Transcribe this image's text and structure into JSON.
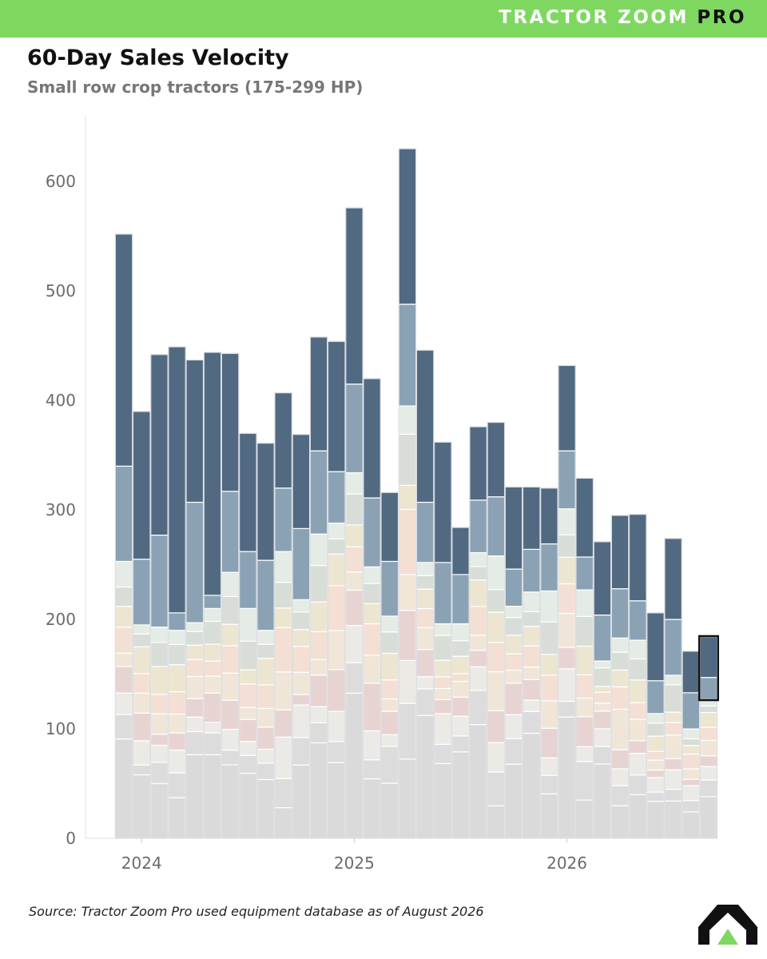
{
  "header": {
    "brand_main": "TRACTOR ZOOM",
    "brand_pro": "PRO"
  },
  "chart_title": "60-Day Sales Velocity",
  "chart_subtitle": "Small row crop tractors (175-299 HP)",
  "source": "Source: Tractor Zoom Pro used equipment database as of August 2026",
  "logo": {
    "icon": "tractor-zoom-arrow-logo",
    "colors": {
      "dark": "#111111",
      "accent": "#7ed85f"
    }
  },
  "chart_data": {
    "type": "bar",
    "stacked": true,
    "ylim": [
      0,
      660
    ],
    "yticks": [
      0,
      100,
      200,
      300,
      400,
      500,
      600
    ],
    "xticks": [
      "2024",
      "2025",
      "2026"
    ],
    "xtick_positions": [
      1,
      13,
      25
    ],
    "grid": false,
    "highlighted_bar": 33,
    "colors": {
      "top": "#516a82",
      "second": "#8ba2b5",
      "middle": [
        "#e5ebe5",
        "#d9ddd8",
        "#ece6d1",
        "#f4dfd4",
        "#f0e6d8",
        "#e8d3d3",
        "#eceae6",
        "#dcdcdc"
      ],
      "base": "#dadada"
    },
    "series_order": [
      "base",
      "band_1",
      "band_2",
      "band_3",
      "band_4",
      "band_5",
      "band_6",
      "band_7",
      "band_8",
      "second",
      "top"
    ],
    "bars": [
      {
        "total": 552,
        "second": 340,
        "top_of_band": 253
      },
      {
        "total": 390,
        "second": 255,
        "top_of_band": 195
      },
      {
        "total": 442,
        "second": 277,
        "top_of_band": 193
      },
      {
        "total": 449,
        "second": 206,
        "top_of_band": 190
      },
      {
        "total": 437,
        "second": 307,
        "top_of_band": 197
      },
      {
        "total": 444,
        "second": 222,
        "top_of_band": 210
      },
      {
        "total": 443,
        "second": 317,
        "top_of_band": 243
      },
      {
        "total": 370,
        "second": 262,
        "top_of_band": 210
      },
      {
        "total": 361,
        "second": 254,
        "top_of_band": 190
      },
      {
        "total": 407,
        "second": 320,
        "top_of_band": 262
      },
      {
        "total": 369,
        "second": 283,
        "top_of_band": 218
      },
      {
        "total": 458,
        "second": 354,
        "top_of_band": 278
      },
      {
        "total": 454,
        "second": 335,
        "top_of_band": 288
      },
      {
        "total": 576,
        "second": 415,
        "top_of_band": 334
      },
      {
        "total": 420,
        "second": 311,
        "top_of_band": 248
      },
      {
        "total": 316,
        "second": 253,
        "top_of_band": 203
      },
      {
        "total": 630,
        "second": 488,
        "top_of_band": 395
      },
      {
        "total": 446,
        "second": 307,
        "top_of_band": 252
      },
      {
        "total": 362,
        "second": 252,
        "top_of_band": 196
      },
      {
        "total": 284,
        "second": 241,
        "top_of_band": 196
      },
      {
        "total": 376,
        "second": 309,
        "top_of_band": 261
      },
      {
        "total": 380,
        "second": 312,
        "top_of_band": 258
      },
      {
        "total": 321,
        "second": 246,
        "top_of_band": 212
      },
      {
        "total": 321,
        "second": 264,
        "top_of_band": 225
      },
      {
        "total": 320,
        "second": 269,
        "top_of_band": 226
      },
      {
        "total": 432,
        "second": 354,
        "top_of_band": 301
      },
      {
        "total": 329,
        "second": 257,
        "top_of_band": 227
      },
      {
        "total": 271,
        "second": 204,
        "top_of_band": 162
      },
      {
        "total": 295,
        "second": 228,
        "top_of_band": 183
      },
      {
        "total": 296,
        "second": 217,
        "top_of_band": 181
      },
      {
        "total": 206,
        "second": 144,
        "top_of_band": 114
      },
      {
        "total": 274,
        "second": 200,
        "top_of_band": 149
      },
      {
        "total": 171,
        "second": 133,
        "top_of_band": 100
      },
      {
        "total": 184,
        "second": 147,
        "top_of_band": 127
      }
    ]
  }
}
